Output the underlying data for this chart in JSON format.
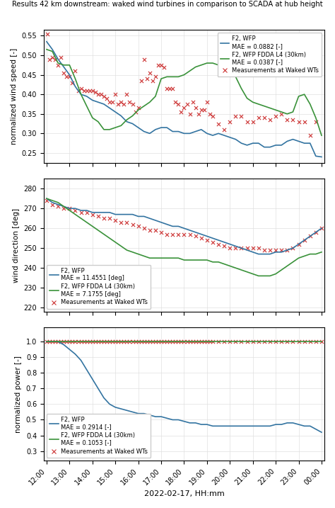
{
  "title": "Results 42 km downstream: waked wind turbines in comparison to SCADA at hub height",
  "xlabel": "2022-02-17, HH:mm",
  "xtick_labels": [
    "12:00",
    "13:00",
    "14:00",
    "15:00",
    "16:00",
    "17:00",
    "18:00",
    "19:00",
    "20:00",
    "21:00",
    "22:00",
    "23:00",
    "00:00"
  ],
  "color_blue": "#3374a1",
  "color_green": "#3a923a",
  "color_red": "#cc3333",
  "panel1": {
    "ylabel": "normalized wind speed [-]",
    "ylim": [
      0.225,
      0.565
    ],
    "yticks": [
      0.25,
      0.3,
      0.35,
      0.4,
      0.45,
      0.5,
      0.55
    ],
    "legend_loc": "upper right",
    "legend_labels": [
      "F2, WFP\nMAE = 0.0882 [-]",
      "F2, WFP FDDA L4 (30km)\nMAE = 0.0387 [-]",
      "Measurements at Waked WTs"
    ],
    "blue_x": [
      0,
      1,
      2,
      3,
      4,
      5,
      6,
      7,
      8,
      9,
      10,
      11,
      12,
      13,
      14,
      15,
      16,
      17,
      18,
      19,
      20,
      21,
      22,
      23,
      24,
      25,
      26,
      27,
      28,
      29,
      30,
      31,
      32,
      33,
      34,
      35,
      36,
      37,
      38,
      39,
      40,
      41,
      42,
      43,
      44,
      45,
      46,
      47,
      48
    ],
    "blue_y": [
      0.535,
      0.515,
      0.49,
      0.47,
      0.45,
      0.42,
      0.4,
      0.395,
      0.385,
      0.38,
      0.375,
      0.365,
      0.355,
      0.345,
      0.33,
      0.325,
      0.315,
      0.305,
      0.3,
      0.31,
      0.315,
      0.315,
      0.305,
      0.305,
      0.3,
      0.3,
      0.305,
      0.31,
      0.3,
      0.295,
      0.3,
      0.295,
      0.29,
      0.285,
      0.275,
      0.27,
      0.275,
      0.275,
      0.265,
      0.265,
      0.27,
      0.27,
      0.28,
      0.285,
      0.28,
      0.275,
      0.275,
      0.242,
      0.24
    ],
    "green_x": [
      0,
      1,
      2,
      3,
      4,
      5,
      6,
      7,
      8,
      9,
      10,
      11,
      12,
      13,
      14,
      15,
      16,
      17,
      18,
      19,
      20,
      21,
      22,
      23,
      24,
      25,
      26,
      27,
      28,
      29,
      30,
      31,
      32,
      33,
      34,
      35,
      36,
      37,
      38,
      39,
      40,
      41,
      42,
      43,
      44,
      45,
      46,
      47,
      48
    ],
    "green_y": [
      0.515,
      0.51,
      0.48,
      0.475,
      0.475,
      0.44,
      0.4,
      0.37,
      0.34,
      0.33,
      0.31,
      0.31,
      0.315,
      0.32,
      0.335,
      0.345,
      0.36,
      0.37,
      0.38,
      0.395,
      0.44,
      0.445,
      0.445,
      0.445,
      0.45,
      0.46,
      0.47,
      0.475,
      0.48,
      0.48,
      0.475,
      0.47,
      0.455,
      0.445,
      0.415,
      0.39,
      0.38,
      0.375,
      0.37,
      0.365,
      0.36,
      0.355,
      0.35,
      0.355,
      0.395,
      0.4,
      0.375,
      0.34,
      0.295
    ],
    "scatter_x": [
      0.1,
      0.5,
      1.0,
      1.5,
      2.0,
      2.5,
      3.0,
      3.5,
      4.0,
      4.5,
      5.0,
      5.5,
      6.0,
      6.5,
      7.0,
      7.5,
      8.0,
      8.5,
      9.0,
      9.5,
      10.0,
      10.5,
      11.0,
      11.5,
      12.0,
      12.5,
      13.0,
      13.5,
      14.0,
      14.5,
      15.0,
      15.5,
      16.0,
      16.5,
      17.0,
      17.5,
      18.0,
      18.5,
      19.0,
      19.5,
      20.0,
      20.5,
      21.0,
      21.5,
      22.0,
      22.5,
      23.0,
      23.5,
      24.0,
      24.5,
      25.0,
      25.5,
      26.0,
      26.5,
      27.0,
      27.5,
      28.0,
      28.5,
      29.0,
      30.0,
      31.0,
      32.0,
      33.0,
      34.0,
      35.0,
      36.0,
      37.0,
      38.0,
      39.0,
      40.0,
      41.0,
      42.0,
      43.0,
      44.0,
      45.0,
      46.0,
      47.0
    ],
    "scatter_y": [
      0.555,
      0.49,
      0.495,
      0.49,
      0.475,
      0.495,
      0.455,
      0.445,
      0.445,
      0.43,
      0.46,
      0.41,
      0.415,
      0.41,
      0.41,
      0.41,
      0.41,
      0.405,
      0.4,
      0.4,
      0.395,
      0.39,
      0.38,
      0.38,
      0.4,
      0.375,
      0.38,
      0.375,
      0.4,
      0.38,
      0.375,
      0.355,
      0.365,
      0.435,
      0.49,
      0.44,
      0.455,
      0.435,
      0.445,
      0.475,
      0.475,
      0.47,
      0.415,
      0.415,
      0.415,
      0.38,
      0.375,
      0.355,
      0.365,
      0.375,
      0.35,
      0.38,
      0.365,
      0.35,
      0.36,
      0.36,
      0.38,
      0.35,
      0.345,
      0.325,
      0.31,
      0.33,
      0.345,
      0.345,
      0.33,
      0.33,
      0.34,
      0.34,
      0.335,
      0.345,
      0.35,
      0.335,
      0.335,
      0.33,
      0.33,
      0.295,
      0.33
    ]
  },
  "panel2": {
    "ylabel": "wind direction [deg]",
    "ylim": [
      218,
      285
    ],
    "yticks": [
      220,
      230,
      240,
      250,
      260,
      270,
      280
    ],
    "legend_loc": "lower left",
    "legend_labels": [
      "F2, WFP\nMAE = 11.4551 [deg]",
      "F2, WFP FDDA L4 (30km)\nMAE = 7.1755 [deg]",
      "Measurements at Waked WTs"
    ],
    "blue_x": [
      0,
      1,
      2,
      3,
      4,
      5,
      6,
      7,
      8,
      9,
      10,
      11,
      12,
      13,
      14,
      15,
      16,
      17,
      18,
      19,
      20,
      21,
      22,
      23,
      24,
      25,
      26,
      27,
      28,
      29,
      30,
      31,
      32,
      33,
      34,
      35,
      36,
      37,
      38,
      39,
      40,
      41,
      42,
      43,
      44,
      45,
      46,
      47,
      48
    ],
    "blue_y": [
      275,
      273,
      272,
      271,
      270,
      270,
      269,
      269,
      268,
      268,
      268,
      268,
      267,
      267,
      267,
      267,
      266,
      266,
      265,
      264,
      263,
      262,
      261,
      261,
      260,
      259,
      258,
      257,
      256,
      255,
      254,
      253,
      252,
      251,
      250,
      249,
      248,
      247,
      247,
      247,
      248,
      248,
      249,
      250,
      252,
      254,
      256,
      258,
      260
    ],
    "green_x": [
      0,
      1,
      2,
      3,
      4,
      5,
      6,
      7,
      8,
      9,
      10,
      11,
      12,
      13,
      14,
      15,
      16,
      17,
      18,
      19,
      20,
      21,
      22,
      23,
      24,
      25,
      26,
      27,
      28,
      29,
      30,
      31,
      32,
      33,
      34,
      35,
      36,
      37,
      38,
      39,
      40,
      41,
      42,
      43,
      44,
      45,
      46,
      47,
      48
    ],
    "green_y": [
      275,
      274,
      273,
      271,
      269,
      267,
      265,
      263,
      261,
      259,
      257,
      255,
      253,
      251,
      249,
      248,
      247,
      246,
      245,
      245,
      245,
      245,
      245,
      245,
      244,
      244,
      244,
      244,
      244,
      243,
      243,
      242,
      241,
      240,
      239,
      238,
      237,
      236,
      236,
      236,
      237,
      239,
      241,
      243,
      245,
      246,
      247,
      247,
      248
    ],
    "scatter_x": [
      0,
      1,
      2,
      3,
      4,
      5,
      6,
      7,
      8,
      9,
      10,
      11,
      12,
      13,
      14,
      15,
      16,
      17,
      18,
      19,
      20,
      21,
      22,
      23,
      24,
      25,
      26,
      27,
      28,
      29,
      30,
      31,
      32,
      33,
      34,
      35,
      36,
      37,
      38,
      39,
      40,
      41,
      42,
      43,
      44,
      45,
      46,
      47,
      48
    ],
    "scatter_y": [
      274,
      272,
      271,
      270,
      270,
      269,
      268,
      268,
      267,
      266,
      265,
      265,
      264,
      263,
      263,
      262,
      261,
      260,
      259,
      259,
      258,
      257,
      257,
      257,
      257,
      257,
      256,
      255,
      254,
      253,
      252,
      251,
      250,
      250,
      250,
      250,
      250,
      250,
      249,
      249,
      249,
      249,
      249,
      250,
      252,
      254,
      256,
      258,
      260
    ]
  },
  "panel3": {
    "ylabel": "normalized power [-]",
    "ylim": [
      0.24,
      1.09
    ],
    "yticks": [
      0.3,
      0.4,
      0.5,
      0.6,
      0.7,
      0.8,
      0.9,
      1.0
    ],
    "legend_loc": "lower left",
    "legend_labels": [
      "F2, WFP\nMAE = 0.2914 [-]",
      "F2, WFP FDDA L4 (30km)\nMAE = 0.1053 [-]",
      "Measurements at Waked WTs"
    ],
    "blue_x": [
      0,
      1,
      2,
      3,
      4,
      5,
      6,
      7,
      8,
      9,
      10,
      11,
      12,
      13,
      14,
      15,
      16,
      17,
      18,
      19,
      20,
      21,
      22,
      23,
      24,
      25,
      26,
      27,
      28,
      29,
      30,
      31,
      32,
      33,
      34,
      35,
      36,
      37,
      38,
      39,
      40,
      41,
      42,
      43,
      44,
      45,
      46,
      47,
      48
    ],
    "blue_y": [
      1.0,
      1.0,
      1.0,
      0.98,
      0.95,
      0.92,
      0.88,
      0.82,
      0.76,
      0.7,
      0.64,
      0.6,
      0.58,
      0.57,
      0.56,
      0.55,
      0.54,
      0.54,
      0.53,
      0.52,
      0.52,
      0.51,
      0.5,
      0.5,
      0.49,
      0.48,
      0.48,
      0.47,
      0.47,
      0.46,
      0.46,
      0.46,
      0.46,
      0.46,
      0.46,
      0.46,
      0.46,
      0.46,
      0.46,
      0.46,
      0.47,
      0.47,
      0.48,
      0.48,
      0.47,
      0.46,
      0.46,
      0.44,
      0.42
    ],
    "green_x": [
      0,
      1,
      2,
      3,
      4,
      5,
      6,
      7,
      8,
      9,
      10,
      11,
      12,
      13,
      14,
      15,
      16,
      17,
      18,
      19,
      20,
      21,
      22,
      23,
      24,
      25,
      26,
      27,
      28,
      29,
      30,
      31,
      32,
      33,
      34,
      35,
      36,
      37,
      38,
      39,
      40,
      41,
      42,
      43,
      44,
      45,
      46,
      47,
      48
    ],
    "green_y": [
      1.0,
      1.0,
      1.0,
      1.0,
      1.0,
      1.0,
      1.0,
      1.0,
      1.0,
      1.0,
      1.0,
      1.0,
      1.0,
      1.0,
      1.0,
      1.0,
      1.0,
      1.0,
      1.0,
      1.0,
      1.0,
      1.0,
      1.0,
      1.0,
      1.0,
      1.0,
      1.0,
      1.0,
      1.0,
      1.0,
      1.0,
      1.0,
      1.0,
      1.0,
      1.0,
      1.0,
      1.0,
      1.0,
      1.0,
      1.0,
      1.0,
      1.0,
      1.0,
      1.0,
      1.0,
      1.0,
      1.0,
      1.0,
      1.0
    ],
    "scatter_x": [
      0,
      0.5,
      1,
      1.5,
      2,
      2.5,
      3,
      3.5,
      4,
      4.5,
      5,
      5.5,
      6,
      6.5,
      7,
      7.5,
      8,
      8.5,
      9,
      9.5,
      10,
      10.5,
      11,
      11.5,
      12,
      12.5,
      13,
      13.5,
      14,
      14.5,
      15,
      15.5,
      16,
      16.5,
      17,
      17.5,
      18,
      18.5,
      19,
      19.5,
      20,
      20.5,
      21,
      21.5,
      22,
      22.5,
      23,
      23.5,
      24,
      24.5,
      25,
      25.5,
      26,
      26.5,
      27,
      27.5,
      28,
      28.5,
      29,
      30,
      31,
      32,
      33,
      34,
      35,
      36,
      37,
      38,
      39,
      40,
      41,
      42,
      43,
      44,
      45,
      46,
      47,
      48
    ],
    "scatter_y": [
      1.0,
      1.0,
      1.0,
      1.0,
      1.0,
      1.0,
      1.0,
      1.0,
      1.0,
      1.0,
      1.0,
      1.0,
      1.0,
      1.0,
      1.0,
      1.0,
      1.0,
      1.0,
      1.0,
      1.0,
      1.0,
      1.0,
      1.0,
      1.0,
      1.0,
      1.0,
      1.0,
      1.0,
      1.0,
      1.0,
      1.0,
      1.0,
      1.0,
      1.0,
      1.0,
      1.0,
      1.0,
      1.0,
      1.0,
      1.0,
      1.0,
      1.0,
      1.0,
      1.0,
      1.0,
      1.0,
      1.0,
      1.0,
      1.0,
      1.0,
      1.0,
      1.0,
      1.0,
      1.0,
      1.0,
      1.0,
      1.0,
      1.0,
      1.0,
      1.0,
      1.0,
      1.0,
      1.0,
      1.0,
      1.0,
      1.0,
      1.0,
      1.0,
      1.0,
      1.0,
      1.0,
      1.0,
      1.0,
      1.0,
      1.0,
      1.0,
      1.0,
      1.0
    ]
  }
}
